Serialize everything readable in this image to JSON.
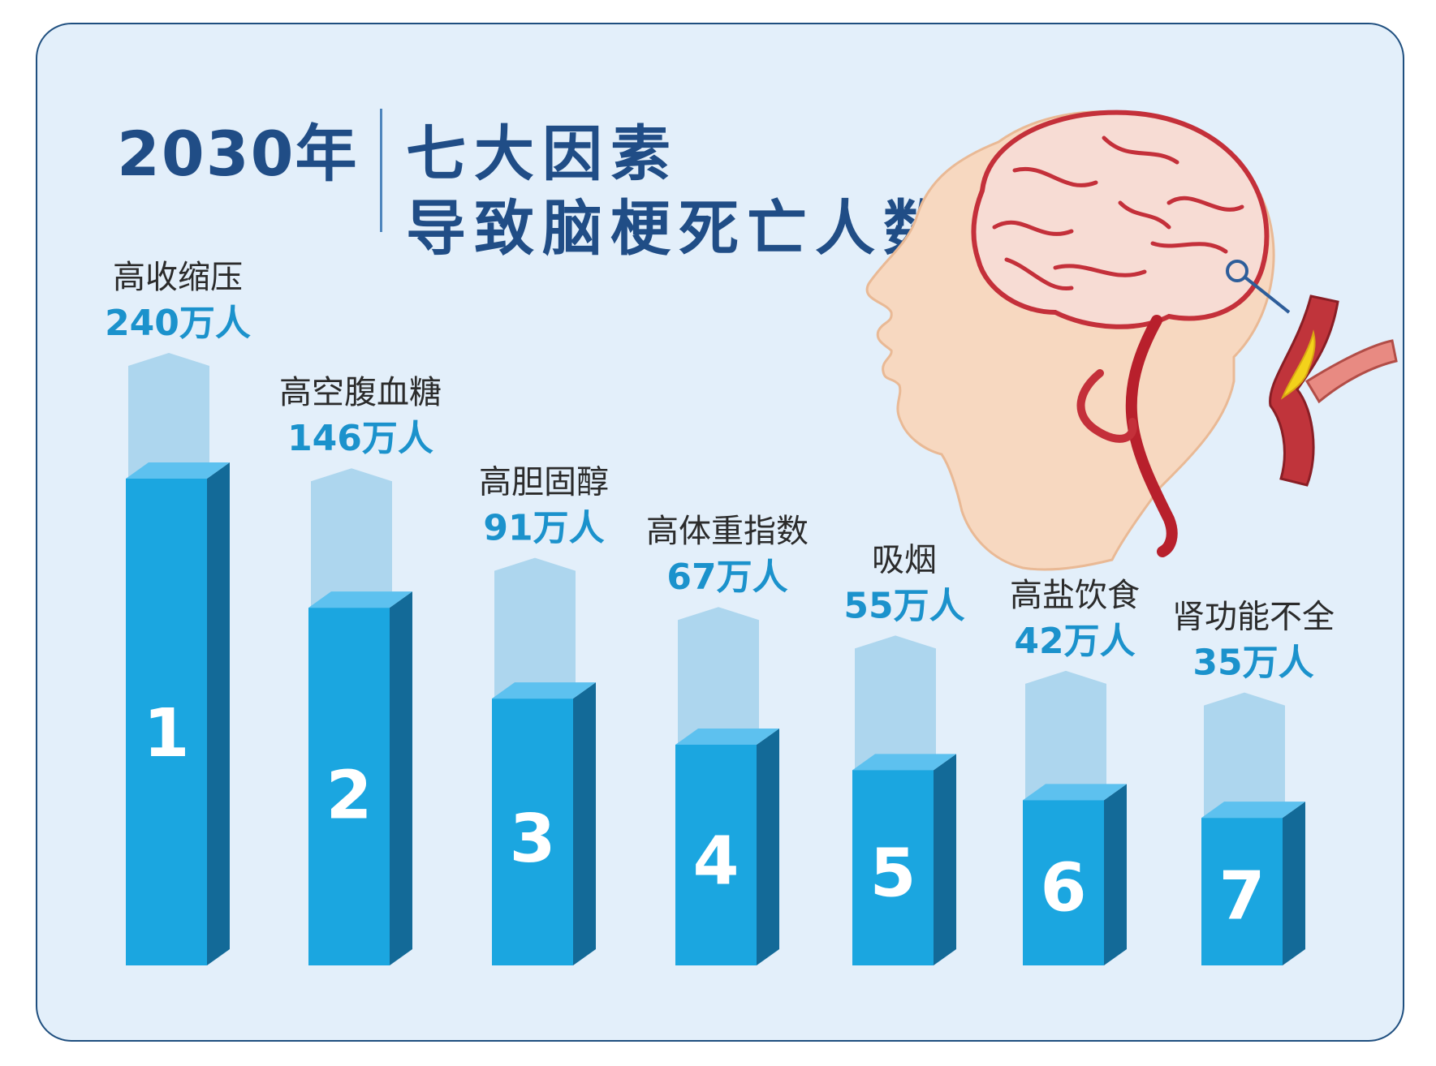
{
  "header": {
    "year": "2030年",
    "title_line_1": "七大因素",
    "title_line_2": "导致脑梗死亡人数"
  },
  "colors": {
    "background": "#e3effa",
    "border": "#1f4f7f",
    "title": "#204d86",
    "bar_front": "#1ba6e0",
    "bar_top": "#5dc1ef",
    "bar_side": "#136a98",
    "bar_ghost": "#add6ee",
    "value_text": "#1b92cc"
  },
  "illustration": {
    "icon": "brain-stroke-illustration",
    "detail_icon": "blocked-artery-illustration"
  },
  "chart_data": {
    "type": "bar",
    "title": "2030年 七大因素导致脑梗死亡人数",
    "unit": "万人",
    "categories": [
      "高收缩压",
      "高空腹血糖",
      "高胆固醇",
      "高体重指数",
      "吸烟",
      "高盐饮食",
      "肾功能不全"
    ],
    "values": [
      240,
      146,
      91,
      67,
      55,
      42,
      35
    ],
    "value_labels": [
      "240万人",
      "146万人",
      "91万人",
      "67万人",
      "55万人",
      "42万人",
      "35万人"
    ],
    "ranks": [
      "1",
      "2",
      "3",
      "4",
      "5",
      "6",
      "7"
    ]
  }
}
